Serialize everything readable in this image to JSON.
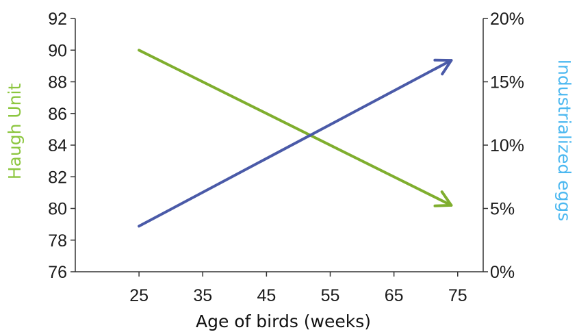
{
  "chart_data": {
    "type": "line",
    "xlabel": "Age of birds (weeks)",
    "ylabel_left": "Haugh Unit",
    "ylabel_right": "Industrialized eggs",
    "xlim": [
      15,
      79
    ],
    "xticks": [
      25,
      35,
      45,
      55,
      65,
      75
    ],
    "xtick_labels": [
      "25",
      "35",
      "45",
      "55",
      "65",
      "75"
    ],
    "ylim_left": [
      76,
      92
    ],
    "yticks_left": [
      76,
      78,
      80,
      82,
      84,
      86,
      88,
      90,
      92
    ],
    "ytick_labels_left": [
      "76",
      "78",
      "80",
      "82",
      "84",
      "86",
      "88",
      "90",
      "92"
    ],
    "ylim_right": [
      0,
      20
    ],
    "yticks_right": [
      0,
      5,
      10,
      15,
      20
    ],
    "ytick_labels_right": [
      "0%",
      "5%",
      "10%",
      "15%",
      "20%"
    ],
    "grid": false,
    "series": [
      {
        "axis": "left",
        "color": "#7fae2e",
        "marker_end": "arrow",
        "x": [
          25,
          74
        ],
        "y": [
          90,
          80.2
        ]
      },
      {
        "axis": "right",
        "color": "#4a5aa8",
        "marker_end": "arrow",
        "x": [
          25,
          74
        ],
        "y": [
          3.6,
          16.7
        ]
      }
    ],
    "colors": {
      "axis": "#333333",
      "ticks_text": "#1a1a1a",
      "left_title": "#8cc63f",
      "right_title": "#4cb8f0"
    }
  }
}
